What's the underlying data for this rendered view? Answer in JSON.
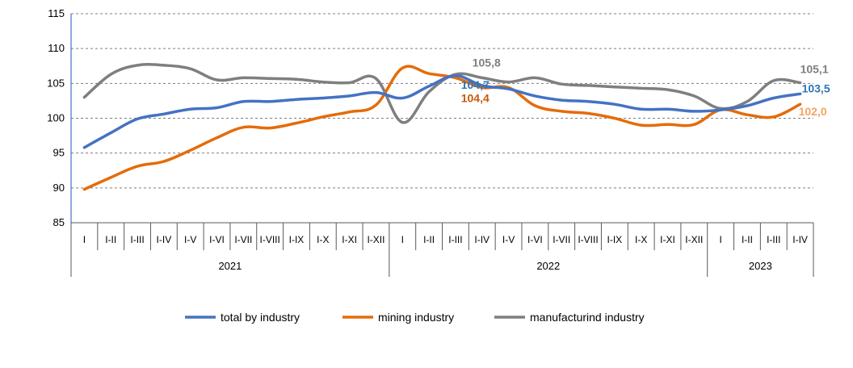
{
  "chart_data": {
    "type": "line",
    "title": "",
    "ylim": [
      85,
      115
    ],
    "yticks": [
      85,
      90,
      95,
      100,
      105,
      110,
      115
    ],
    "grid": "horizontal dashed",
    "legend_position": "bottom",
    "categories": [
      "I",
      "I-II",
      "I-III",
      "I-IV",
      "I-V",
      "I-VI",
      "I-VII",
      "I-VIII",
      "I-IX",
      "I-X",
      "I-XI",
      "I-XII",
      "I",
      "I-II",
      "I-III",
      "I-IV",
      "I-V",
      "I-VI",
      "I-VII",
      "I-VIII",
      "I-IX",
      "I-X",
      "I-XI",
      "I-XII",
      "I",
      "I-II",
      "I-III",
      "I-IV"
    ],
    "years": [
      {
        "label": "2021",
        "start": 0,
        "end": 11
      },
      {
        "label": "2022",
        "start": 12,
        "end": 23
      },
      {
        "label": "2023",
        "start": 24,
        "end": 27
      }
    ],
    "series": [
      {
        "name": "total by industry",
        "color": "#4472C4",
        "values": [
          95.8,
          97.9,
          99.9,
          100.6,
          101.3,
          101.5,
          102.4,
          102.4,
          102.7,
          102.9,
          103.2,
          103.7,
          102.9,
          104.6,
          106.1,
          104.7,
          104.2,
          103.2,
          102.6,
          102.4,
          102.0,
          101.3,
          101.3,
          101.0,
          101.2,
          101.8,
          102.9,
          103.5
        ]
      },
      {
        "name": "mining industry",
        "color": "#E46C0A",
        "values": [
          89.8,
          91.5,
          93.1,
          93.8,
          95.4,
          97.2,
          98.7,
          98.6,
          99.3,
          100.2,
          100.9,
          101.9,
          107.2,
          106.4,
          105.8,
          104.4,
          104.4,
          101.8,
          101.0,
          100.7,
          100.0,
          99.0,
          99.1,
          99.1,
          101.2,
          100.5,
          100.2,
          102.0
        ]
      },
      {
        "name": "manufacturind industry",
        "color": "#7F7F7F",
        "values": [
          103.0,
          106.3,
          107.6,
          107.6,
          107.1,
          105.5,
          105.8,
          105.7,
          105.6,
          105.2,
          105.1,
          105.7,
          99.4,
          103.8,
          106.3,
          105.8,
          105.2,
          105.8,
          104.9,
          104.7,
          104.5,
          104.3,
          104.1,
          103.2,
          101.4,
          102.4,
          105.4,
          105.1
        ]
      }
    ],
    "data_labels": [
      {
        "series": 2,
        "index": 15,
        "text": "105,8",
        "color": "#7F7F7F"
      },
      {
        "series": 0,
        "index": 15,
        "text": "104,7",
        "color": "#2E75B6"
      },
      {
        "series": 1,
        "index": 15,
        "text": "104,4",
        "color": "#C55A11"
      },
      {
        "series": 2,
        "index": 27,
        "text": "105,1",
        "color": "#7F7F7F"
      },
      {
        "series": 0,
        "index": 27,
        "text": "103,5",
        "color": "#2E75B6"
      },
      {
        "series": 1,
        "index": 27,
        "text": "102,0",
        "color": "#F4A460"
      }
    ]
  }
}
